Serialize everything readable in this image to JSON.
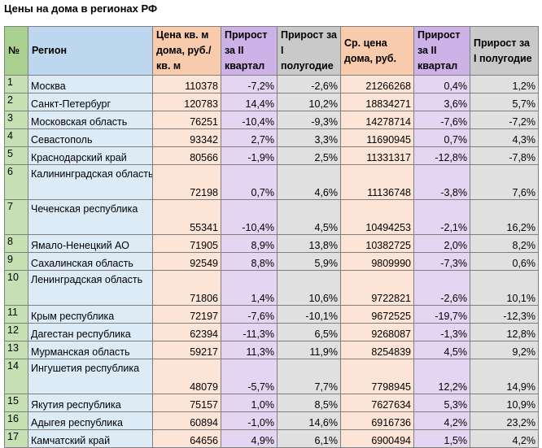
{
  "title": "Цены на дома в регионах РФ",
  "header": {
    "num": "№",
    "region": "Регион",
    "price_sqm": "Цена кв. м дома, руб./кв. м",
    "price_sqm_q2": "Прирост за II квартал",
    "price_sqm_h1": "Прирост за I полугодие",
    "avg_price": "Ср. цена дома, руб.",
    "avg_price_q2": "Прирост за II квартал",
    "avg_price_h1": "Прирост за I полугодие"
  },
  "rows": [
    {
      "num": "1",
      "region": "Москва",
      "price_sqm": "110378",
      "price_sqm_q2": "-7,2%",
      "price_sqm_h1": "-2,6%",
      "avg_price": "21266268",
      "avg_price_q2": "0,4%",
      "avg_price_h1": "1,2%"
    },
    {
      "num": "2",
      "region": "Санкт-Петербург",
      "price_sqm": "120783",
      "price_sqm_q2": "14,4%",
      "price_sqm_h1": "10,2%",
      "avg_price": "18834271",
      "avg_price_q2": "3,6%",
      "avg_price_h1": "5,7%"
    },
    {
      "num": "3",
      "region": "Московская область",
      "price_sqm": "76251",
      "price_sqm_q2": "-10,4%",
      "price_sqm_h1": "-9,3%",
      "avg_price": "14278714",
      "avg_price_q2": "-7,6%",
      "avg_price_h1": "-7,2%"
    },
    {
      "num": "4",
      "region": "Севастополь",
      "price_sqm": "93342",
      "price_sqm_q2": "2,7%",
      "price_sqm_h1": "3,3%",
      "avg_price": "11690945",
      "avg_price_q2": "0,7%",
      "avg_price_h1": "4,3%"
    },
    {
      "num": "5",
      "region": "Краснодарский край",
      "price_sqm": "80566",
      "price_sqm_q2": "-1,9%",
      "price_sqm_h1": "2,5%",
      "avg_price": "11331317",
      "avg_price_q2": "-12,8%",
      "avg_price_h1": "-7,8%"
    },
    {
      "num": "6",
      "region": "Калининградская область",
      "price_sqm": "72198",
      "price_sqm_q2": "0,7%",
      "price_sqm_h1": "4,6%",
      "avg_price": "11136748",
      "avg_price_q2": "-3,8%",
      "avg_price_h1": "7,6%"
    },
    {
      "num": "7",
      "region": "Чеченская республика",
      "price_sqm": "55341",
      "price_sqm_q2": "-10,4%",
      "price_sqm_h1": "4,5%",
      "avg_price": "10494253",
      "avg_price_q2": "-2,1%",
      "avg_price_h1": "16,2%"
    },
    {
      "num": "8",
      "region": "Ямало-Ненецкий АО",
      "price_sqm": "71905",
      "price_sqm_q2": "8,9%",
      "price_sqm_h1": "13,8%",
      "avg_price": "10382725",
      "avg_price_q2": "2,0%",
      "avg_price_h1": "8,2%"
    },
    {
      "num": "9",
      "region": "Сахалинская область",
      "price_sqm": "92549",
      "price_sqm_q2": "8,8%",
      "price_sqm_h1": "5,9%",
      "avg_price": "9809990",
      "avg_price_q2": "-7,3%",
      "avg_price_h1": "0,6%"
    },
    {
      "num": "10",
      "region": "Ленинградская область",
      "price_sqm": "71806",
      "price_sqm_q2": "1,4%",
      "price_sqm_h1": "10,6%",
      "avg_price": "9722821",
      "avg_price_q2": "-2,6%",
      "avg_price_h1": "10,1%"
    },
    {
      "num": "11",
      "region": "Крым республика",
      "price_sqm": "72197",
      "price_sqm_q2": "-7,6%",
      "price_sqm_h1": "-10,1%",
      "avg_price": "9672525",
      "avg_price_q2": "-19,7%",
      "avg_price_h1": "-12,3%"
    },
    {
      "num": "12",
      "region": "Дагестан республика",
      "price_sqm": "62394",
      "price_sqm_q2": "-11,3%",
      "price_sqm_h1": "6,5%",
      "avg_price": "9268087",
      "avg_price_q2": "-1,3%",
      "avg_price_h1": "12,8%"
    },
    {
      "num": "13",
      "region": "Мурманская область",
      "price_sqm": "59217",
      "price_sqm_q2": "11,3%",
      "price_sqm_h1": "11,9%",
      "avg_price": "8254839",
      "avg_price_q2": "4,5%",
      "avg_price_h1": "9,2%"
    },
    {
      "num": "14",
      "region": "Ингушетия республика",
      "price_sqm": "48079",
      "price_sqm_q2": "-5,7%",
      "price_sqm_h1": "7,7%",
      "avg_price": "7798945",
      "avg_price_q2": "12,2%",
      "avg_price_h1": "14,9%"
    },
    {
      "num": "15",
      "region": "Якутия республика",
      "price_sqm": "75157",
      "price_sqm_q2": "1,0%",
      "price_sqm_h1": "8,5%",
      "avg_price": "7627634",
      "avg_price_q2": "5,3%",
      "avg_price_h1": "10,9%"
    },
    {
      "num": "16",
      "region": "Адыгея республика",
      "price_sqm": "60894",
      "price_sqm_q2": "-1,0%",
      "price_sqm_h1": "14,6%",
      "avg_price": "6916736",
      "avg_price_q2": "4,2%",
      "avg_price_h1": "23,2%"
    },
    {
      "num": "17",
      "region": "Камчатский край",
      "price_sqm": "64656",
      "price_sqm_q2": "4,9%",
      "price_sqm_h1": "6,1%",
      "avg_price": "6900494",
      "avg_price_q2": "1,5%",
      "avg_price_h1": "4,2%"
    }
  ]
}
